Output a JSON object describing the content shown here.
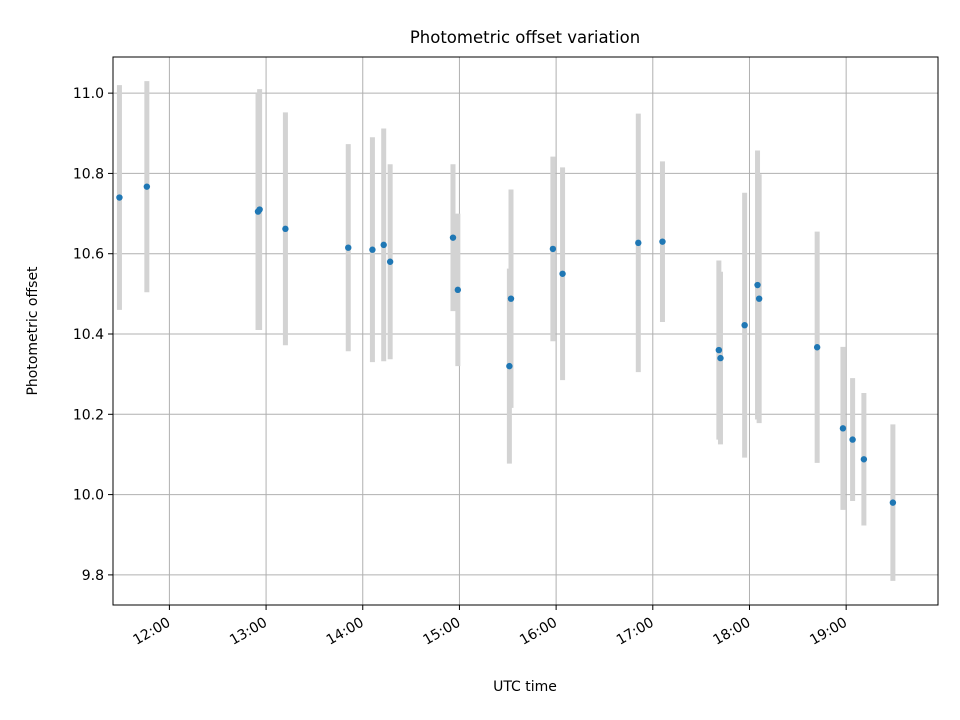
{
  "chart_data": {
    "type": "scatter",
    "title": "Photometric offset variation",
    "xlabel": "UTC time",
    "ylabel": "Photometric offset",
    "grid": true,
    "x_unit": "UTC time (HH:MM)",
    "xlim": [
      "11:25",
      "19:57"
    ],
    "ylim": [
      9.725,
      11.09
    ],
    "x_tick_labels": [
      "12:00",
      "13:00",
      "14:00",
      "15:00",
      "16:00",
      "17:00",
      "18:00",
      "19:00"
    ],
    "y_tick_labels": [
      "9.8",
      "10.0",
      "10.2",
      "10.4",
      "10.6",
      "10.8",
      "11.0"
    ],
    "colors": {
      "marker": "#1f77b4",
      "errorbar": "#d3d3d3",
      "grid": "#b0b0b0"
    },
    "points": [
      {
        "x": "11:29",
        "y": 10.74,
        "err": 0.28
      },
      {
        "x": "11:46",
        "y": 10.767,
        "err": 0.263
      },
      {
        "x": "12:55",
        "y": 10.705,
        "err": 0.295
      },
      {
        "x": "12:56",
        "y": 10.71,
        "err": 0.3
      },
      {
        "x": "13:12",
        "y": 10.662,
        "err": 0.29
      },
      {
        "x": "13:51",
        "y": 10.615,
        "err": 0.258
      },
      {
        "x": "14:06",
        "y": 10.61,
        "err": 0.28
      },
      {
        "x": "14:13",
        "y": 10.622,
        "err": 0.29
      },
      {
        "x": "14:17",
        "y": 10.58,
        "err": 0.243
      },
      {
        "x": "14:56",
        "y": 10.64,
        "err": 0.183
      },
      {
        "x": "14:59",
        "y": 10.51,
        "err": 0.19
      },
      {
        "x": "15:31",
        "y": 10.32,
        "err": 0.243
      },
      {
        "x": "15:32",
        "y": 10.488,
        "err": 0.272
      },
      {
        "x": "15:58",
        "y": 10.612,
        "err": 0.23
      },
      {
        "x": "16:04",
        "y": 10.55,
        "err": 0.265
      },
      {
        "x": "16:51",
        "y": 10.627,
        "err": 0.322
      },
      {
        "x": "17:06",
        "y": 10.63,
        "err": 0.2
      },
      {
        "x": "17:41",
        "y": 10.36,
        "err": 0.223
      },
      {
        "x": "17:42",
        "y": 10.34,
        "err": 0.215
      },
      {
        "x": "17:57",
        "y": 10.422,
        "err": 0.33
      },
      {
        "x": "18:05",
        "y": 10.522,
        "err": 0.335
      },
      {
        "x": "18:06",
        "y": 10.488,
        "err": 0.31
      },
      {
        "x": "18:42",
        "y": 10.367,
        "err": 0.288
      },
      {
        "x": "18:58",
        "y": 10.165,
        "err": 0.203
      },
      {
        "x": "19:04",
        "y": 10.137,
        "err": 0.153
      },
      {
        "x": "19:11",
        "y": 10.088,
        "err": 0.165
      },
      {
        "x": "19:29",
        "y": 9.98,
        "err": 0.195
      }
    ]
  }
}
